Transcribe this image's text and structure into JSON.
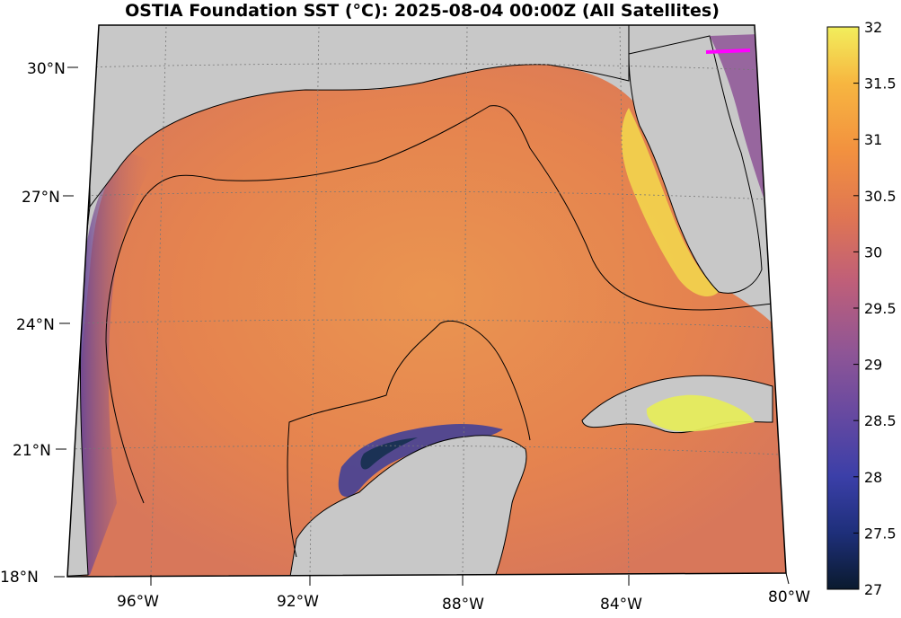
{
  "title": "OSTIA Foundation SST (°C): 2025-08-04 00:00Z (All Satellites)",
  "lat_labels": [
    "30°N",
    "27°N",
    "24°N",
    "21°N",
    "18°N"
  ],
  "lon_labels": [
    "96°W",
    "92°W",
    "88°W",
    "84°W",
    "80°W"
  ],
  "colorbar": {
    "min": 27,
    "max": 32,
    "tick_labels": [
      "32",
      "31.5",
      "31",
      "30.5",
      "30",
      "29.5",
      "29",
      "28.5",
      "28",
      "27.5",
      "27"
    ],
    "colormap": [
      "#0a1a2e",
      "#1e2f7a",
      "#3b3fa8",
      "#6a4aa0",
      "#8e5596",
      "#c05f78",
      "#df7553",
      "#f2913f",
      "#f7b640",
      "#f2ee5c"
    ]
  },
  "colors": {
    "land": "#c8c8c8",
    "water_warm": "#e98a4c",
    "water_hot": "#f5cc4a",
    "water_cool": "#3d3ea3",
    "marker": "#ff00ff"
  }
}
